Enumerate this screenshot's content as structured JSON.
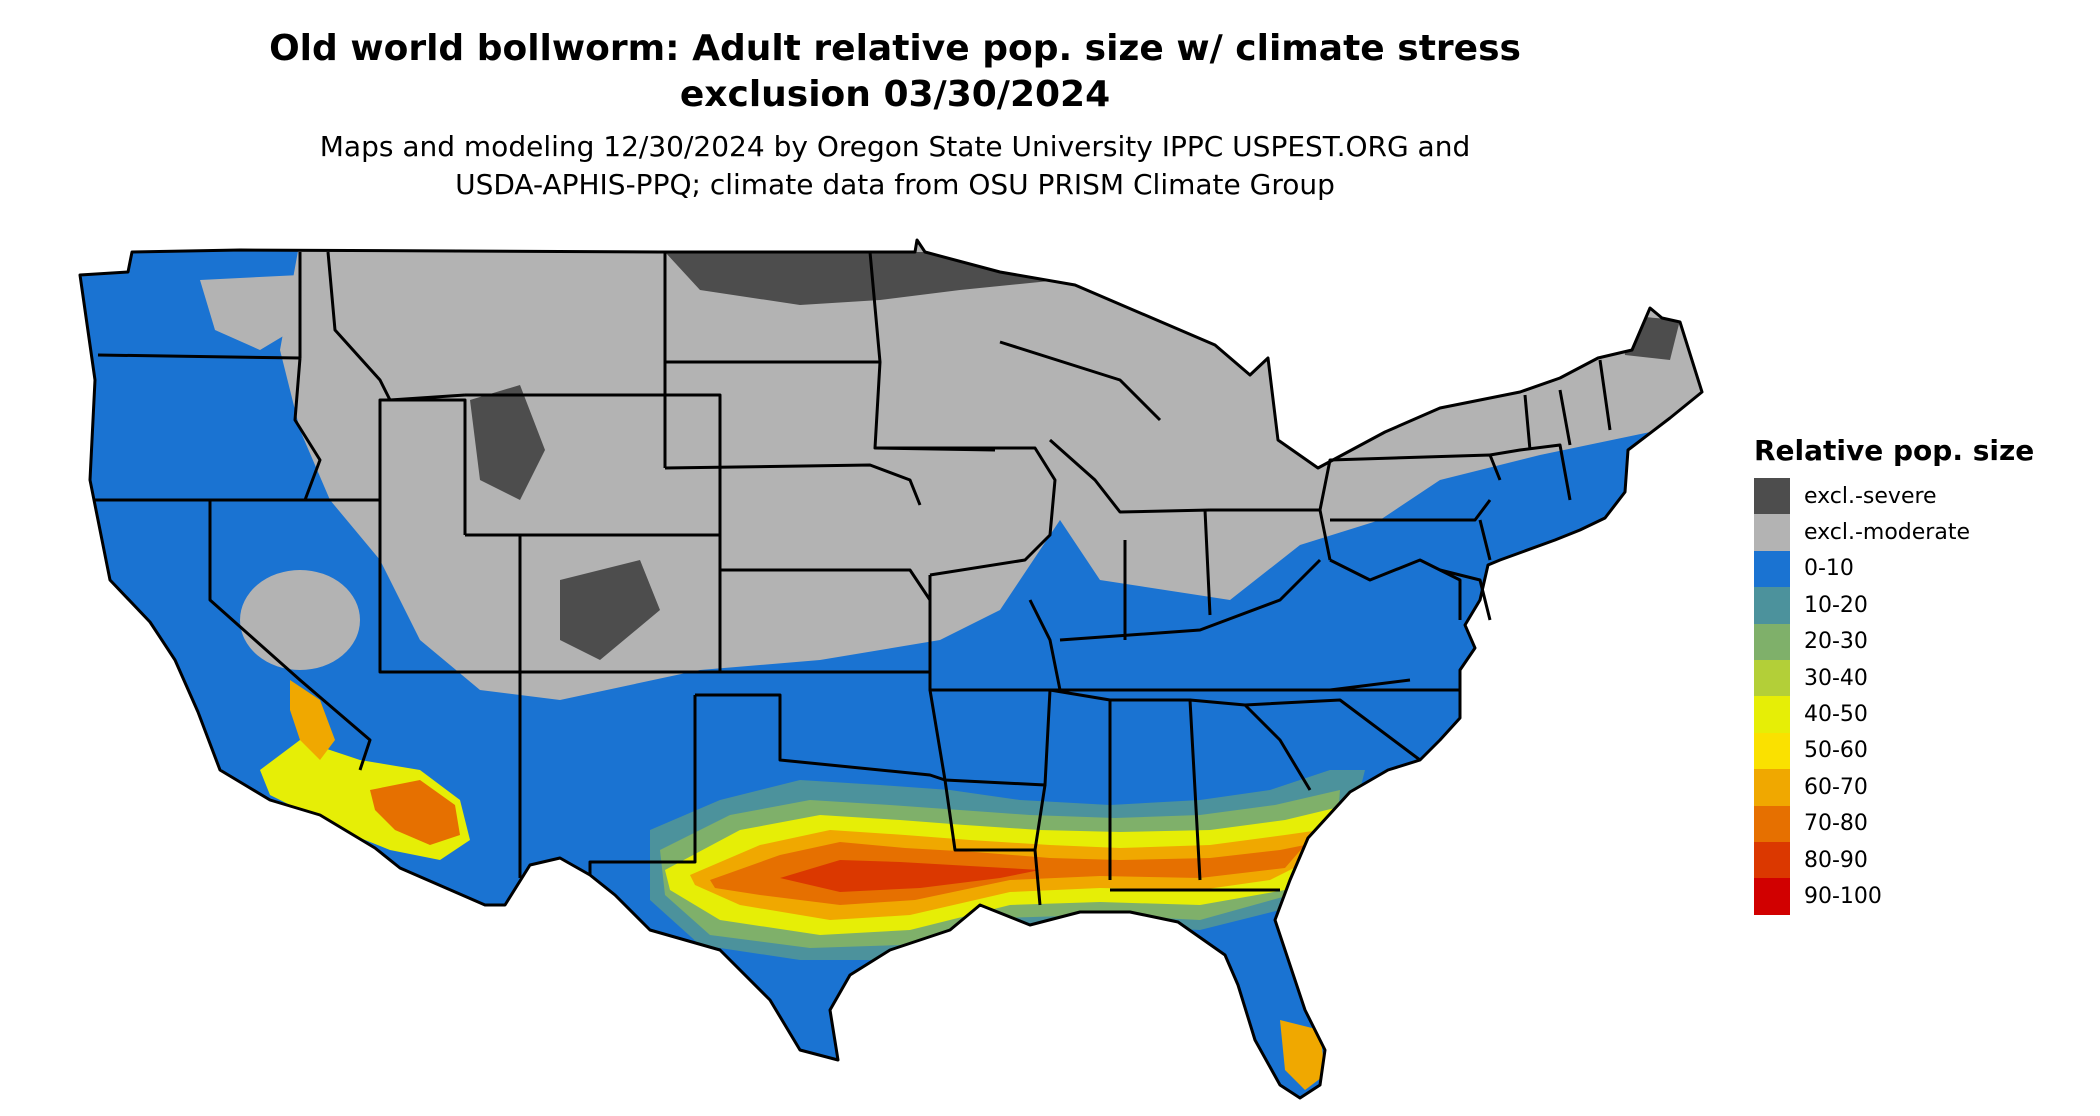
{
  "header": {
    "title_line1": "Old world bollworm: Adult relative pop. size w/ climate stress",
    "title_line2": "exclusion 03/30/2024",
    "subtitle_line1": "Maps and modeling 12/30/2024 by Oregon State University IPPC USPEST.ORG and",
    "subtitle_line2": "USDA-APHIS-PPQ; climate data from OSU PRISM Climate Group"
  },
  "legend": {
    "title": "Relative pop. size",
    "items": [
      {
        "label": "excl.-severe",
        "color": "#4d4d4d"
      },
      {
        "label": "excl.-moderate",
        "color": "#b3b3b3"
      },
      {
        "label": "0-10",
        "color": "#1a73d2"
      },
      {
        "label": "10-20",
        "color": "#4c929c"
      },
      {
        "label": "20-30",
        "color": "#7fb06a"
      },
      {
        "label": "30-40",
        "color": "#b3cf38"
      },
      {
        "label": "40-50",
        "color": "#e6ee06"
      },
      {
        "label": "50-60",
        "color": "#fae100"
      },
      {
        "label": "60-70",
        "color": "#f0a800"
      },
      {
        "label": "70-80",
        "color": "#e67000"
      },
      {
        "label": "80-90",
        "color": "#db3800"
      },
      {
        "label": "90-100",
        "color": "#d10000"
      }
    ]
  },
  "map": {
    "colors": {
      "severe": "#4d4d4d",
      "moderate": "#b3b3b3",
      "low": "#1a73d2",
      "c10": "#4c929c",
      "c20": "#7fb06a",
      "c40": "#e6ee06",
      "c60": "#f0a800",
      "c70": "#e67000",
      "c80": "#db3800",
      "c90": "#d10000",
      "border": "#000000"
    }
  }
}
